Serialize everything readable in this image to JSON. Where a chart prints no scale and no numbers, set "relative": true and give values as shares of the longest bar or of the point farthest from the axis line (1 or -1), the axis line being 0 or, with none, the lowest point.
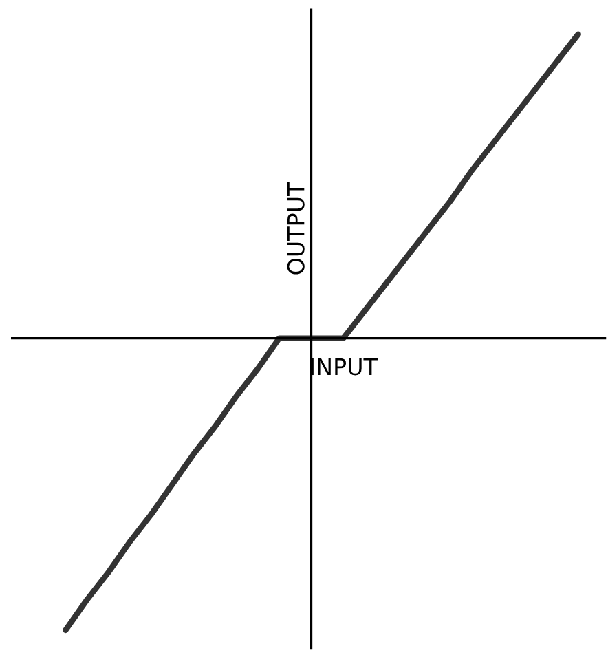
{
  "chart_data": {
    "type": "line",
    "relative": true,
    "xlabel": "INPUT",
    "ylabel": "OUTPUT",
    "categories": [
      null,
      null,
      null,
      null,
      null,
      null,
      null,
      null,
      null,
      null,
      null,
      null,
      null,
      null,
      null,
      null,
      null,
      null,
      null,
      null,
      null,
      null,
      null,
      null,
      null
    ],
    "series": [
      {
        "color": "#333333",
        "values": [
          -0.96,
          -0.86,
          -0.77,
          -0.67,
          -0.58,
          -0.48,
          -0.38,
          -0.29,
          -0.19,
          -0.1,
          0,
          0,
          0,
          0,
          0.09,
          0.18,
          0.27,
          0.36,
          0.45,
          0.55,
          0.64,
          0.73,
          0.82,
          0.91,
          1
        ]
      }
    ]
  }
}
